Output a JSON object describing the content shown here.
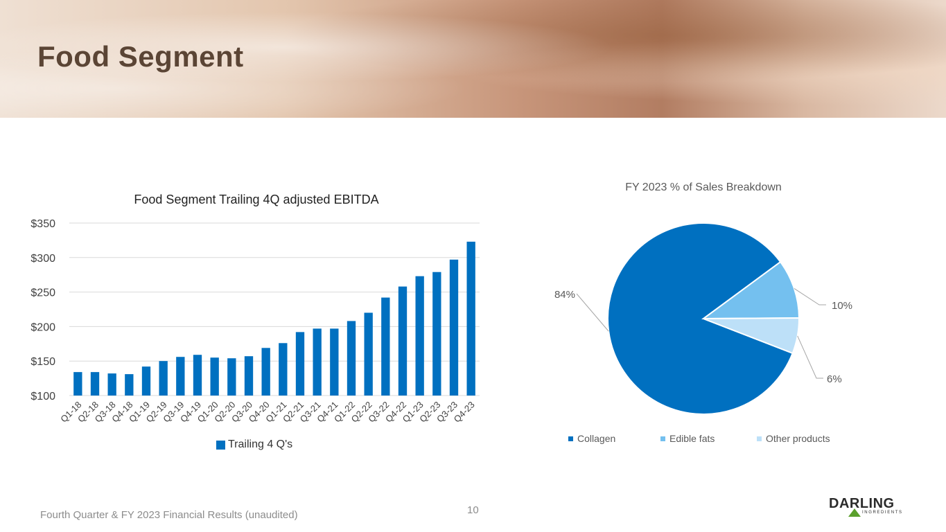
{
  "slide": {
    "title": "Food Segment",
    "footer": "Fourth Quarter & FY 2023 Financial Results (unaudited)",
    "page_number": "10",
    "logo": {
      "name": "DARLING",
      "sub": "INGREDIENTS"
    }
  },
  "chart_data": [
    {
      "type": "bar",
      "title": "Food Segment Trailing 4Q adjusted EBITDA",
      "categories": [
        "Q1-18",
        "Q2-18",
        "Q3-18",
        "Q4-18",
        "Q1-19",
        "Q2-19",
        "Q3-19",
        "Q4-19",
        "Q1-20",
        "Q2-20",
        "Q3-20",
        "Q4-20",
        "Q1-21",
        "Q2-21",
        "Q3-21",
        "Q4-21",
        "Q1-22",
        "Q2-22",
        "Q3-22",
        "Q4-22",
        "Q1-23",
        "Q2-23",
        "Q3-23",
        "Q4-23"
      ],
      "series": [
        {
          "name": "Trailing 4 Q's",
          "color": "#0070c0",
          "values": [
            134,
            134,
            132,
            131,
            142,
            150,
            156,
            159,
            155,
            154,
            157,
            169,
            176,
            192,
            197,
            197,
            208,
            220,
            242,
            258,
            273,
            279,
            297,
            323
          ]
        }
      ],
      "ylim": [
        100,
        350
      ],
      "yticks": [
        100,
        150,
        200,
        250,
        300,
        350
      ],
      "ytick_labels": [
        "$100",
        "$150",
        "$200",
        "$250",
        "$300",
        "$350"
      ],
      "grid": true,
      "legend": "bottom"
    },
    {
      "type": "pie",
      "title": "FY 2023 % of Sales Breakdown",
      "slices": [
        {
          "label": "Collagen",
          "value": 84,
          "display": "84%",
          "color": "#0070c0"
        },
        {
          "label": "Edible fats",
          "value": 10,
          "display": "10%",
          "color": "#74c0ef"
        },
        {
          "label": "Other products",
          "value": 6,
          "display": "6%",
          "color": "#bde0f8"
        }
      ],
      "legend": "bottom"
    }
  ]
}
